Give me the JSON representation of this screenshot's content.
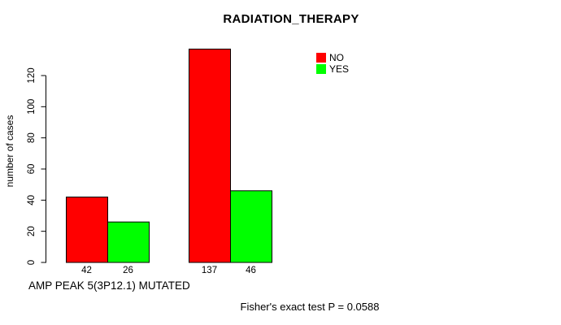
{
  "title": "RADIATION_THERAPY",
  "y_axis": {
    "label": "number of cases"
  },
  "x_axis": {
    "label": "AMP PEAK 5(3P12.1) MUTATED"
  },
  "legend": {
    "items": [
      {
        "label": "NO",
        "color": "#ff0000"
      },
      {
        "label": "YES",
        "color": "#00ff00"
      }
    ]
  },
  "footer": {
    "text": "Fisher's exact test P = 0.0588"
  },
  "chart_data": {
    "type": "bar",
    "title": "RADIATION_THERAPY",
    "xlabel": "AMP PEAK 5(3P12.1) MUTATED",
    "ylabel": "number of cases",
    "ylim": [
      0,
      140
    ],
    "yticks": [
      0,
      20,
      40,
      60,
      80,
      100,
      120
    ],
    "grid": false,
    "legend_position": "top-right",
    "series": [
      {
        "name": "NO",
        "color": "#ff0000"
      },
      {
        "name": "YES",
        "color": "#00ff00"
      }
    ],
    "groups": [
      {
        "bars": [
          {
            "series": "NO",
            "value": 42
          },
          {
            "series": "YES",
            "value": 26
          }
        ]
      },
      {
        "bars": [
          {
            "series": "NO",
            "value": 137
          },
          {
            "series": "YES",
            "value": 46
          }
        ]
      }
    ],
    "bar_count_labels": [
      "42",
      "26",
      "137",
      "46"
    ],
    "annotation": "Fisher's exact test P = 0.0588"
  }
}
